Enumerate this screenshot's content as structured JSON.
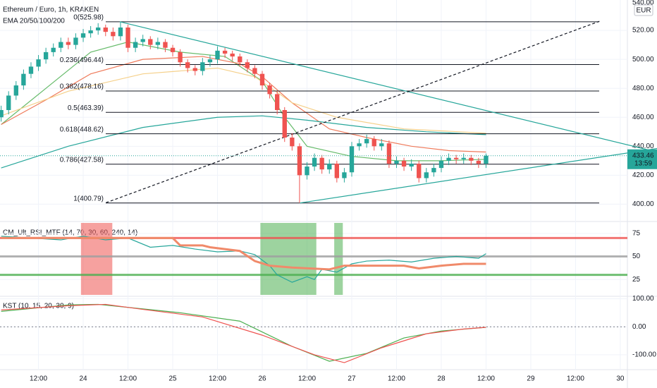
{
  "chart_data": [
    {
      "type": "candlestick",
      "title": "Ethereum / Euro, 1h, KRAKEN",
      "subtitle": "EMA 20/50/100/200",
      "currency": "EUR",
      "countdown": "13:59",
      "last_price": {
        "value": 433.46,
        "label": "433.46"
      },
      "top_label": "540.00",
      "xlim": [
        1.69,
        169.9
      ],
      "xticks": [
        {
          "value": 12,
          "label": "12:00"
        },
        {
          "value": 24,
          "label": "24"
        },
        {
          "value": 36,
          "label": "12:00"
        },
        {
          "value": 48,
          "label": "25"
        },
        {
          "value": 60,
          "label": "12:00"
        },
        {
          "value": 72,
          "label": "26"
        },
        {
          "value": 84,
          "label": "12:00"
        },
        {
          "value": 96,
          "label": "27"
        },
        {
          "value": 108,
          "label": "12:00"
        },
        {
          "value": 120,
          "label": "28"
        },
        {
          "value": 132,
          "label": "12:00"
        },
        {
          "value": 144,
          "label": "29"
        },
        {
          "value": 156,
          "label": "12:00"
        },
        {
          "value": 168,
          "label": "30"
        }
      ],
      "ylim": [
        389,
        541
      ],
      "yticks": [
        {
          "value": 400,
          "label": "400.00"
        },
        {
          "value": 420,
          "label": "420.00"
        },
        {
          "value": 440,
          "label": "440.00"
        },
        {
          "value": 460,
          "label": "460.00"
        },
        {
          "value": 480,
          "label": "480.00"
        },
        {
          "value": 500,
          "label": "500.00"
        },
        {
          "value": 520,
          "label": "520.00"
        }
      ],
      "up_color": "#26a69a",
      "down_color": "#ef5350",
      "x": [
        2,
        4,
        6,
        8,
        10,
        12,
        14,
        16,
        18,
        20,
        22,
        24,
        26,
        28,
        30,
        32,
        34,
        36,
        38,
        40,
        42,
        44,
        46,
        48,
        50,
        52,
        54,
        56,
        58,
        60,
        62,
        64,
        66,
        68,
        70,
        72,
        74,
        76,
        78,
        80,
        82,
        84,
        86,
        88,
        90,
        92,
        94,
        96,
        98,
        100,
        102,
        104,
        106,
        108,
        110,
        112,
        114,
        116,
        118,
        120,
        122,
        124,
        126,
        128,
        130,
        132
      ],
      "open": [
        460,
        465,
        475,
        482,
        490,
        495,
        500,
        505,
        508,
        512,
        510,
        515,
        518,
        520,
        522,
        519,
        516,
        522,
        508,
        512,
        514,
        510,
        512,
        508,
        505,
        498,
        494,
        492,
        498,
        500,
        506,
        504,
        502,
        498,
        494,
        490,
        482,
        476,
        465,
        446,
        440,
        420,
        426,
        432,
        424,
        428,
        418,
        422,
        440,
        442,
        445,
        440,
        442,
        428,
        430,
        426,
        428,
        418,
        422,
        425,
        430,
        432,
        431,
        432,
        430,
        428
      ],
      "high": [
        468,
        478,
        485,
        493,
        498,
        503,
        508,
        511,
        515,
        515,
        518,
        521,
        523,
        525,
        524,
        522,
        525.98,
        524,
        515,
        517,
        516,
        515,
        514,
        510,
        507,
        500,
        496,
        501,
        503,
        509,
        508,
        506,
        504,
        500,
        496,
        492,
        484,
        478,
        467,
        449,
        442,
        429,
        435,
        434,
        431,
        430,
        425,
        443,
        445,
        448,
        447,
        445,
        444,
        433,
        432,
        431,
        430,
        425,
        428,
        433,
        435,
        434,
        435,
        434,
        432,
        435
      ],
      "low": [
        457,
        462,
        472,
        479,
        487,
        492,
        497,
        502,
        505,
        507,
        507,
        512,
        515,
        517,
        516,
        513,
        513,
        505,
        505,
        509,
        507,
        507,
        505,
        502,
        495,
        491,
        489,
        489,
        495,
        497,
        501,
        499,
        495,
        491,
        487,
        479,
        473,
        462,
        443,
        437,
        400.79,
        417,
        423,
        421,
        421,
        415,
        415,
        419,
        437,
        439,
        437,
        437,
        425,
        425,
        423,
        423,
        415,
        415,
        419,
        422,
        427,
        428,
        428,
        427,
        425,
        425
      ],
      "close": [
        465,
        475,
        482,
        490,
        495,
        500,
        505,
        508,
        512,
        510,
        515,
        518,
        520,
        522,
        519,
        516,
        522,
        508,
        512,
        514,
        510,
        512,
        508,
        505,
        498,
        494,
        492,
        498,
        500,
        506,
        504,
        502,
        498,
        494,
        490,
        482,
        476,
        465,
        446,
        440,
        420,
        426,
        432,
        424,
        428,
        418,
        422,
        440,
        442,
        445,
        440,
        442,
        428,
        430,
        426,
        428,
        418,
        422,
        425,
        430,
        432,
        431,
        432,
        430,
        428,
        433.46
      ],
      "fib_levels": [
        {
          "label": "0(525.98)",
          "value": 525.98
        },
        {
          "label": "0.236(496.44)",
          "value": 496.44
        },
        {
          "label": "0.382(478.16)",
          "value": 478.16
        },
        {
          "label": "0.5(463.39)",
          "value": 463.39
        },
        {
          "label": "0.618(448.62)",
          "value": 448.62
        },
        {
          "label": "0.786(427.58)",
          "value": 427.58
        },
        {
          "label": "1(400.79)",
          "value": 400.79
        }
      ],
      "trendlines": [
        {
          "color": "#26a69a",
          "x": [
            33.8,
            177.9
          ],
          "values": [
            525.98,
            436
          ]
        },
        {
          "color": "#26a69a",
          "x": [
            82,
            177.9
          ],
          "values": [
            400.79,
            438.5
          ]
        },
        {
          "color": "#131722",
          "dashed": true,
          "x": [
            30.1,
            162.4
          ],
          "values": [
            401,
            526.3
          ]
        }
      ],
      "series": [
        {
          "color": "#66bb6a",
          "x": [
            2,
            14,
            26,
            36,
            50,
            62,
            72,
            78,
            84,
            96,
            108,
            120,
            132
          ],
          "values": [
            455,
            480,
            505,
            512,
            505,
            502,
            485,
            460,
            440,
            433,
            430,
            430,
            431
          ]
        },
        {
          "color": "#ef7a5a",
          "x": [
            2,
            14,
            26,
            40,
            56,
            66,
            72,
            80,
            90,
            100,
            112,
            122,
            132
          ],
          "values": [
            455,
            472,
            490,
            500,
            502,
            497,
            488,
            470,
            452,
            446,
            440,
            437,
            436
          ]
        },
        {
          "color": "#f5d08a",
          "x": [
            2,
            20,
            40,
            60,
            70,
            80,
            92,
            110,
            132
          ],
          "values": [
            461,
            478,
            490,
            494,
            488,
            470,
            460,
            452,
            449
          ]
        },
        {
          "color": "#26a69a",
          "x": [
            2,
            20,
            40,
            60,
            72,
            84,
            100,
            116,
            132
          ],
          "values": [
            425,
            440,
            453,
            460,
            461,
            458,
            453,
            450,
            448
          ]
        }
      ]
    },
    {
      "type": "line",
      "title": "CM_Ult_RSI_MTF (14, 70, 30, 60, 240, 14)",
      "ylim": [
        8.3,
        86.4
      ],
      "yticks": [
        25,
        50,
        75
      ],
      "levels": [
        {
          "value": 70,
          "color": "#ef5350"
        },
        {
          "value": 50,
          "color": "#a0a0a0"
        },
        {
          "value": 30,
          "color": "#4caf50"
        }
      ],
      "zones": [
        {
          "from": 23.4,
          "to": 31.8,
          "color": "#ef5350"
        },
        {
          "from": 71.5,
          "to": 86.5,
          "color": "#4caf50"
        },
        {
          "from": 91.3,
          "to": 93.6,
          "color": "#4caf50"
        }
      ],
      "series": [
        {
          "color": "#26a69a",
          "x": [
            2,
            10,
            18,
            24,
            30,
            36,
            42,
            48,
            54,
            60,
            66,
            70,
            74,
            76,
            80,
            84,
            86,
            88,
            92,
            96,
            100,
            106,
            112,
            118,
            124,
            130,
            132
          ],
          "values": [
            72,
            70,
            68,
            72,
            68,
            70,
            60,
            62,
            58,
            55,
            56,
            52,
            40,
            30,
            22,
            28,
            25,
            36,
            33,
            42,
            45,
            46,
            44,
            48,
            50,
            48,
            53
          ]
        },
        {
          "color": "#f08a6a",
          "x": [
            2,
            30,
            48,
            50,
            56,
            58,
            66,
            70,
            74,
            80,
            90,
            94,
            110,
            114,
            120,
            126,
            132
          ],
          "values": [
            70,
            70,
            70,
            62,
            62,
            60,
            56,
            45,
            40,
            38,
            36,
            40,
            40,
            37,
            40,
            42,
            42
          ]
        }
      ]
    },
    {
      "type": "line",
      "title": "KST (10, 15, 20, 30, 9)",
      "ylim": [
        -148,
        103.7
      ],
      "yticks": [
        {
          "value": 100,
          "label": "100.00"
        },
        {
          "value": 0,
          "label": "0.00"
        },
        {
          "value": -100,
          "label": "-100.00"
        }
      ],
      "series": [
        {
          "color": "#4caf50",
          "x": [
            2,
            20,
            28,
            34,
            50,
            66,
            80,
            90,
            100,
            110,
            120,
            132
          ],
          "values": [
            55,
            78,
            80,
            72,
            50,
            20,
            -70,
            -123,
            -95,
            -40,
            -15,
            -2
          ]
        },
        {
          "color": "#ef5350",
          "x": [
            2,
            20,
            30,
            40,
            56,
            72,
            86,
            94,
            104,
            116,
            126,
            132
          ],
          "values": [
            60,
            75,
            80,
            62,
            35,
            -30,
            -100,
            -128,
            -75,
            -25,
            -8,
            -2
          ]
        }
      ]
    }
  ]
}
